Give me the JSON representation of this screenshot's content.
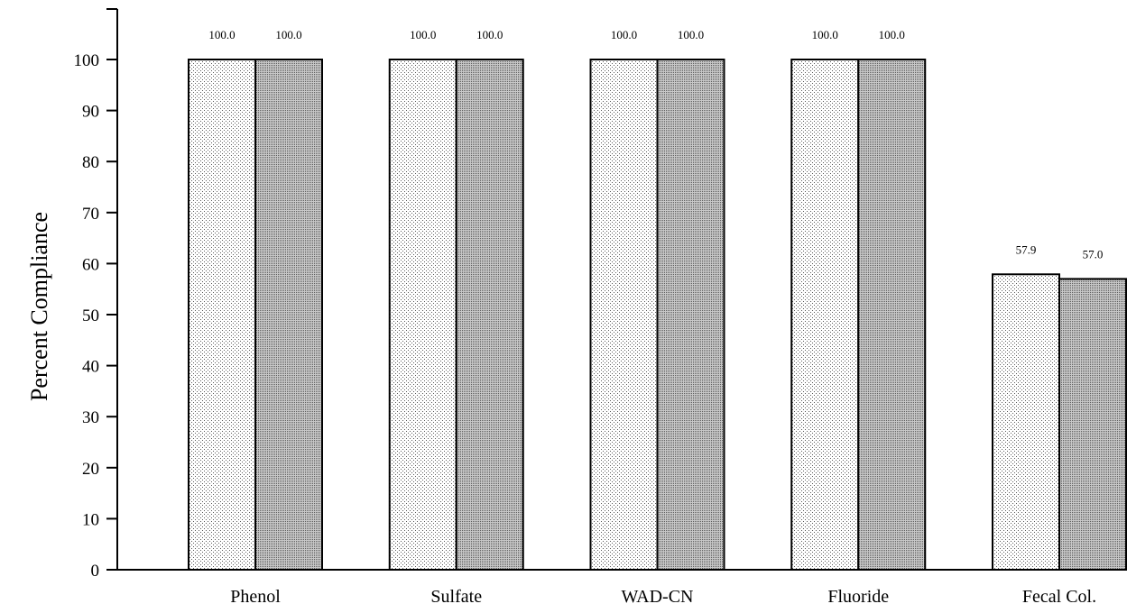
{
  "chart_data": {
    "type": "bar",
    "title": "",
    "xlabel": "",
    "ylabel": "Percent Compliance",
    "ylim": [
      0,
      100
    ],
    "yticks": [
      "0",
      "10",
      "20",
      "30",
      "40",
      "50",
      "60",
      "70",
      "80",
      "90",
      "100"
    ],
    "categories": [
      "Phenol",
      "Sulfate",
      "WAD-CN",
      "Fluoride",
      "Fecal Col."
    ],
    "series": [
      {
        "values": [
          100.0,
          100.0,
          100.0,
          100.0,
          57.9
        ],
        "labels": [
          "100.0",
          "100.0",
          "100.0",
          "100.0",
          "57.9"
        ]
      },
      {
        "values": [
          100.0,
          100.0,
          100.0,
          100.0,
          57.0
        ],
        "labels": [
          "100.0",
          "100.0",
          "100.0",
          "100.0",
          "57.0"
        ]
      }
    ],
    "grid": false,
    "legend": "none"
  }
}
